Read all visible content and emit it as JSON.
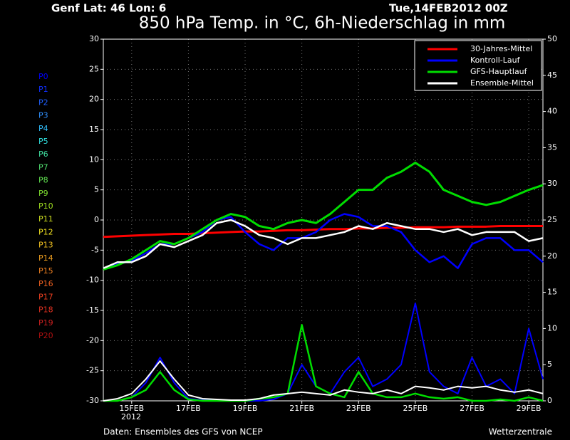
{
  "chart_data": {
    "type": "line",
    "header_left": "Genf  Lat: 46 Lon: 6",
    "header_right": "Tue,14FEB2012 00Z",
    "title": "850 hPa Temp. in °C, 6h-Niederschlag in mm",
    "footer_left": "Daten: Ensembles des GFS von NCEP",
    "footer_right": "Wetterzentrale",
    "x_sublabel": "2012",
    "x": [
      0,
      0.5,
      1,
      1.5,
      2,
      2.5,
      3,
      3.5,
      4,
      4.5,
      5,
      5.5,
      6,
      6.5,
      7,
      7.5,
      8,
      8.5,
      9,
      9.5,
      10,
      10.5,
      11,
      11.5,
      12,
      12.5,
      13,
      13.5,
      14,
      14.5,
      15,
      15.5
    ],
    "xlim": [
      0,
      15.5
    ],
    "xticks": [
      {
        "value": 1,
        "label": "15FEB"
      },
      {
        "value": 3,
        "label": "17FEB"
      },
      {
        "value": 5,
        "label": "19FEB"
      },
      {
        "value": 7,
        "label": "21FEB"
      },
      {
        "value": 9,
        "label": "23FEB"
      },
      {
        "value": 11,
        "label": "25FEB"
      },
      {
        "value": 13,
        "label": "27FEB"
      },
      {
        "value": 15,
        "label": "29FEB"
      }
    ],
    "ylim": [
      -30,
      30
    ],
    "yticks": [
      -30,
      -25,
      -20,
      -15,
      -10,
      -5,
      0,
      5,
      10,
      15,
      20,
      25,
      30
    ],
    "y2lim": [
      0,
      50
    ],
    "y2ticks": [
      0,
      5,
      10,
      15,
      20,
      25,
      30,
      35,
      40,
      45,
      50
    ],
    "grid": true,
    "legend": "top-right",
    "series": [
      {
        "name": "30-Jahres-Mittel",
        "color": "#ff0000",
        "values": [
          -2.8,
          -2.7,
          -2.6,
          -2.5,
          -2.4,
          -2.3,
          -2.3,
          -2.2,
          -2.1,
          -2.0,
          -1.9,
          -1.9,
          -1.8,
          -1.7,
          -1.7,
          -1.6,
          -1.5,
          -1.5,
          -1.4,
          -1.4,
          -1.3,
          -1.3,
          -1.2,
          -1.2,
          -1.2,
          -1.1,
          -1.1,
          -1.1,
          -1.0,
          -1.0,
          -1.0,
          -1.0
        ]
      },
      {
        "name": "Kontroll-Lauf",
        "color": "#0000ff",
        "values": [
          -8,
          -7.3,
          -6.8,
          -5.5,
          -4,
          -4,
          -3,
          -2,
          0,
          0.5,
          -2,
          -4,
          -5,
          -3,
          -3,
          -2,
          0,
          1,
          0.5,
          -1,
          -1,
          -2,
          -5,
          -7,
          -6,
          -8,
          -4,
          -3,
          -3,
          -5,
          -5,
          -7
        ],
        "precip": [
          0,
          0,
          0.5,
          2.5,
          6,
          2.5,
          0.3,
          0.1,
          0,
          0,
          0,
          0,
          0.2,
          1,
          5,
          2,
          1,
          4,
          6,
          2,
          3,
          5,
          13.5,
          4,
          2,
          1,
          6,
          2,
          3,
          1,
          10,
          3
        ]
      },
      {
        "name": "GFS-Hauptlauf",
        "color": "#00dd00",
        "values": [
          -8.2,
          -7.5,
          -6.5,
          -5,
          -3.5,
          -4,
          -3,
          -1.5,
          0,
          1,
          0.5,
          -1,
          -1.5,
          -0.5,
          0,
          -0.5,
          1,
          3,
          5,
          5,
          7,
          8,
          9.5,
          8,
          5,
          4,
          3,
          2.5,
          3,
          4,
          5,
          5.8
        ],
        "precip": [
          0,
          0,
          0.5,
          1.5,
          4,
          1.5,
          0.2,
          0,
          0,
          0,
          0,
          0.3,
          0.5,
          1,
          10.5,
          2,
          1,
          0.5,
          4,
          1,
          0.5,
          0.5,
          1,
          0.5,
          0.3,
          0.5,
          0,
          0,
          0.2,
          0,
          0.5,
          0
        ]
      },
      {
        "name": "Ensemble-Mittel",
        "color": "#ffffff",
        "values": [
          -8,
          -7,
          -7,
          -6,
          -4,
          -4.5,
          -3.5,
          -2.5,
          -0.5,
          0,
          -1,
          -2.5,
          -3,
          -4,
          -3,
          -3,
          -2.5,
          -2,
          -1,
          -1.5,
          -0.5,
          -1,
          -1.5,
          -1.5,
          -2,
          -1.5,
          -2.5,
          -2,
          -2,
          -2,
          -3.5,
          -3
        ],
        "precip": [
          0,
          0.3,
          1,
          3,
          5.5,
          3,
          0.8,
          0.3,
          0.2,
          0.1,
          0.1,
          0.3,
          0.8,
          1,
          1.2,
          1,
          0.8,
          1.5,
          1.2,
          1,
          1.5,
          1,
          2,
          1.8,
          1.5,
          2,
          1.8,
          2,
          1.5,
          1.2,
          1.5,
          1
        ]
      }
    ],
    "members": [
      {
        "name": "P0",
        "color": "#0000ff"
      },
      {
        "name": "P1",
        "color": "#1030ff"
      },
      {
        "name": "P2",
        "color": "#2060ff"
      },
      {
        "name": "P3",
        "color": "#3090ff"
      },
      {
        "name": "P4",
        "color": "#30c0ff"
      },
      {
        "name": "P5",
        "color": "#30e0e0"
      },
      {
        "name": "P6",
        "color": "#40e0a0"
      },
      {
        "name": "P7",
        "color": "#50e070"
      },
      {
        "name": "P8",
        "color": "#60e050"
      },
      {
        "name": "P9",
        "color": "#80e030"
      },
      {
        "name": "P10",
        "color": "#a0e020"
      },
      {
        "name": "P11",
        "color": "#d0e020"
      },
      {
        "name": "P12",
        "color": "#f0e020"
      },
      {
        "name": "P13",
        "color": "#f0c020"
      },
      {
        "name": "P14",
        "color": "#f0a020"
      },
      {
        "name": "P15",
        "color": "#f08020"
      },
      {
        "name": "P16",
        "color": "#f06020"
      },
      {
        "name": "P17",
        "color": "#f04020"
      },
      {
        "name": "P18",
        "color": "#e03020"
      },
      {
        "name": "P19",
        "color": "#d02020"
      },
      {
        "name": "P20",
        "color": "#b01010"
      }
    ]
  }
}
